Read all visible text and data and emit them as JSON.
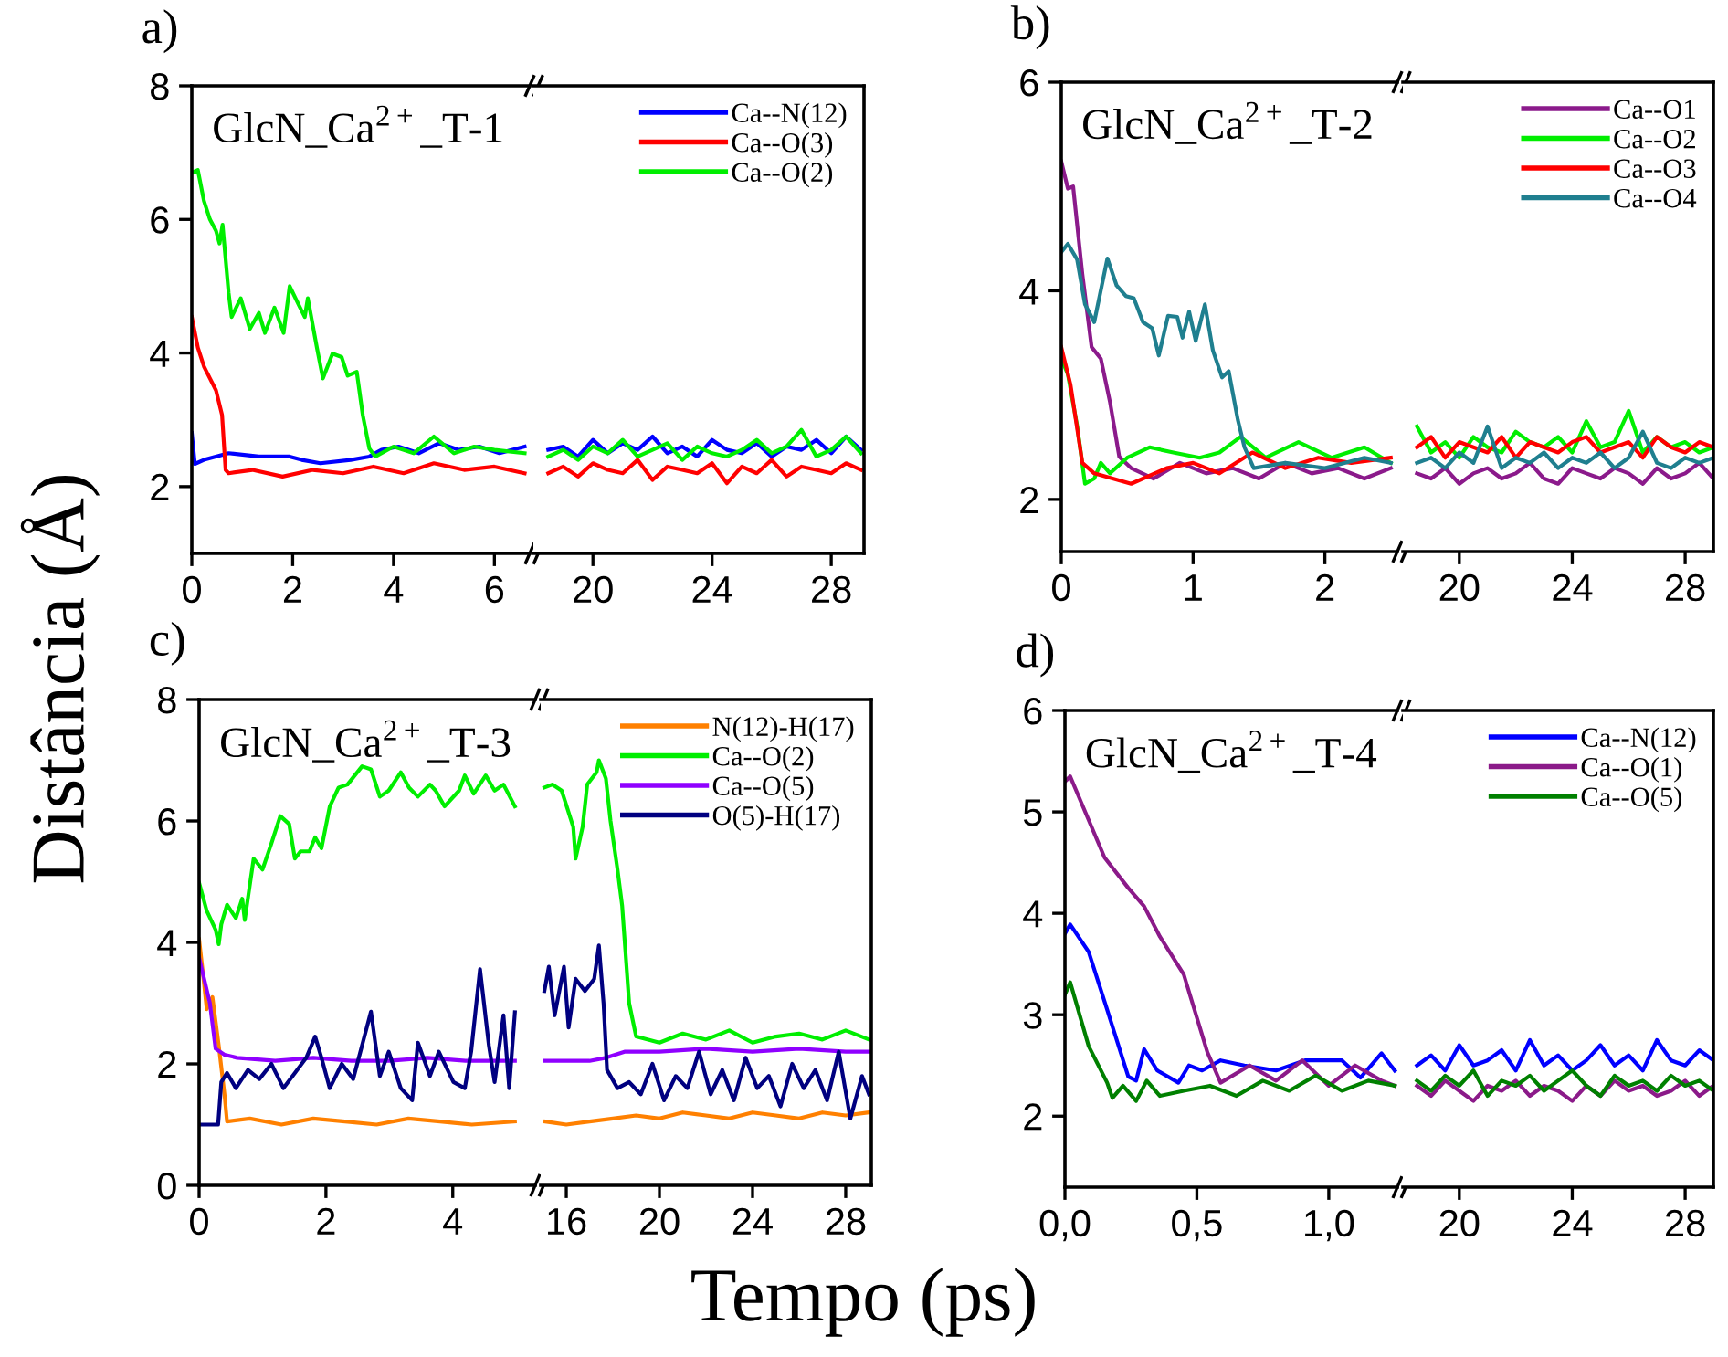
{
  "chart_data": [
    {
      "type": "line",
      "title": "a)",
      "xlabel": "Tempo (ps)",
      "ylabel": "Distância (Å)",
      "annotations": [
        "GlcN_Ca$^{2+}$_T-1"
      ],
      "xlim": [
        0,
        6.7
      ],
      "xticks": [
        0,
        2,
        4,
        6
      ],
      "ylim": [
        1,
        8
      ],
      "yticks": [
        2,
        4,
        6,
        8
      ],
      "grid": false,
      "legend": false,
      "series": [
        {
          "color": "#0000ff",
          "x": [
            0,
            0.06,
            0.24,
            0.73,
            1.33,
            1.94,
            2.18,
            2.55,
            3.15,
            3.52,
            3.76,
            4.1,
            4.5,
            4.9,
            5.3,
            5.7,
            6.1,
            6.6
          ],
          "values": [
            2.8,
            2.34,
            2.4,
            2.5,
            2.45,
            2.45,
            2.4,
            2.35,
            2.4,
            2.45,
            2.55,
            2.6,
            2.5,
            2.65,
            2.55,
            2.6,
            2.5,
            2.6
          ]
        },
        {
          "color": "#ff0000",
          "x": [
            0,
            0.12,
            0.24,
            0.36,
            0.48,
            0.6,
            0.67,
            0.73,
            1.2,
            1.8,
            2.4,
            3.0,
            3.6,
            4.2,
            4.8,
            5.4,
            6.0,
            6.6
          ],
          "values": [
            4.54,
            4.08,
            3.8,
            3.62,
            3.44,
            3.07,
            2.25,
            2.2,
            2.25,
            2.15,
            2.25,
            2.2,
            2.3,
            2.2,
            2.35,
            2.25,
            2.3,
            2.2
          ]
        },
        {
          "color": "#00ee00",
          "x": [
            0,
            0.12,
            0.24,
            0.36,
            0.48,
            0.55,
            0.61,
            0.73,
            0.79,
            0.97,
            1.15,
            1.33,
            1.45,
            1.64,
            1.82,
            1.94,
            2.12,
            2.24,
            2.3,
            2.48,
            2.6,
            2.79,
            2.97,
            3.09,
            3.27,
            3.39,
            3.52,
            3.64,
            4.0,
            4.4,
            4.8,
            5.2,
            5.6,
            6.0,
            6.6
          ],
          "values": [
            6.7,
            6.74,
            6.28,
            6.0,
            5.83,
            5.64,
            5.92,
            4.9,
            4.54,
            4.82,
            4.36,
            4.6,
            4.3,
            4.68,
            4.3,
            5.0,
            4.72,
            4.54,
            4.82,
            4.08,
            3.62,
            3.99,
            3.94,
            3.66,
            3.72,
            3.07,
            2.57,
            2.45,
            2.6,
            2.5,
            2.75,
            2.5,
            2.6,
            2.55,
            2.5
          ]
        }
      ]
    },
    {
      "type": "line",
      "xlim": [
        18,
        29.1
      ],
      "xticks": [
        20,
        24,
        28
      ],
      "ylim": [
        1,
        8
      ],
      "tick_labels": "x",
      "grid": false,
      "legend": "top right",
      "x": [
        18.5,
        19,
        19.5,
        20,
        20.5,
        21,
        21.5,
        22,
        22.5,
        23,
        23.5,
        24,
        24.5,
        25,
        25.5,
        26,
        26.5,
        27,
        27.5,
        28,
        28.5,
        29
      ],
      "series": [
        {
          "name": "Ca--N(12)",
          "color": "#0000ff",
          "values": [
            2.55,
            2.6,
            2.45,
            2.7,
            2.5,
            2.65,
            2.55,
            2.75,
            2.5,
            2.6,
            2.45,
            2.7,
            2.55,
            2.5,
            2.65,
            2.45,
            2.6,
            2.55,
            2.7,
            2.5,
            2.75,
            2.55
          ]
        },
        {
          "name": "Ca--O(3)",
          "color": "#ff0000",
          "values": [
            2.2,
            2.3,
            2.15,
            2.35,
            2.25,
            2.2,
            2.4,
            2.1,
            2.3,
            2.25,
            2.2,
            2.35,
            2.05,
            2.3,
            2.2,
            2.4,
            2.15,
            2.3,
            2.25,
            2.2,
            2.35,
            2.25
          ]
        },
        {
          "name": "Ca--O(2)",
          "color": "#00ee00",
          "values": [
            2.45,
            2.55,
            2.4,
            2.6,
            2.5,
            2.7,
            2.45,
            2.55,
            2.65,
            2.4,
            2.6,
            2.5,
            2.45,
            2.55,
            2.7,
            2.5,
            2.6,
            2.85,
            2.45,
            2.55,
            2.75,
            2.5
          ]
        }
      ]
    },
    {
      "type": "line",
      "title": "b)",
      "annotations": [
        "GlcN_Ca$^{2+}$_T-2"
      ],
      "xlim": [
        0,
        2.55
      ],
      "xticks": [
        0,
        1,
        2
      ],
      "ylim": [
        1.5,
        6
      ],
      "yticks": [
        2,
        4,
        6
      ],
      "grid": false,
      "legend": false,
      "series": [
        {
          "color": "#8b1a8b",
          "x": [
            0,
            0.05,
            0.09,
            0.16,
            0.23,
            0.3,
            0.37,
            0.44,
            0.53,
            0.7,
            0.9,
            1.1,
            1.3,
            1.5,
            1.7,
            1.9,
            2.1,
            2.3,
            2.5
          ],
          "values": [
            5.24,
            4.98,
            5.0,
            4.16,
            3.46,
            3.35,
            2.93,
            2.41,
            2.3,
            2.2,
            2.35,
            2.25,
            2.3,
            2.2,
            2.35,
            2.25,
            2.3,
            2.2,
            2.3
          ]
        },
        {
          "color": "#00ee00",
          "x": [
            0,
            0.05,
            0.12,
            0.18,
            0.25,
            0.3,
            0.37,
            0.5,
            0.67,
            0.85,
            1.05,
            1.2,
            1.36,
            1.55,
            1.8,
            2.05,
            2.3,
            2.5
          ],
          "values": [
            3.35,
            3.2,
            2.71,
            2.15,
            2.2,
            2.35,
            2.25,
            2.4,
            2.5,
            2.45,
            2.4,
            2.45,
            2.6,
            2.4,
            2.55,
            2.4,
            2.5,
            2.35
          ]
        },
        {
          "color": "#ff0000",
          "x": [
            0,
            0.07,
            0.16,
            0.25,
            0.53,
            0.8,
            1.0,
            1.2,
            1.45,
            1.7,
            1.95,
            2.2,
            2.5
          ],
          "values": [
            3.46,
            3.1,
            2.35,
            2.25,
            2.15,
            2.3,
            2.35,
            2.25,
            2.45,
            2.3,
            2.4,
            2.35,
            2.4
          ]
        },
        {
          "color": "#1f7f8f",
          "x": [
            0,
            0.05,
            0.12,
            0.18,
            0.25,
            0.35,
            0.42,
            0.49,
            0.55,
            0.62,
            0.69,
            0.74,
            0.81,
            0.88,
            0.92,
            0.97,
            1.02,
            1.09,
            1.15,
            1.22,
            1.27,
            1.34,
            1.39,
            1.46,
            1.7,
            2.0,
            2.3,
            2.5
          ],
          "values": [
            4.37,
            4.45,
            4.3,
            3.87,
            3.7,
            4.31,
            4.05,
            3.95,
            3.93,
            3.7,
            3.64,
            3.38,
            3.76,
            3.75,
            3.55,
            3.8,
            3.52,
            3.87,
            3.43,
            3.17,
            3.23,
            2.76,
            2.5,
            2.3,
            2.35,
            2.3,
            2.4,
            2.35
          ]
        }
      ]
    },
    {
      "type": "line",
      "xlim": [
        18,
        29
      ],
      "xticks": [
        20,
        24,
        28
      ],
      "ylim": [
        1.5,
        6
      ],
      "tick_labels": "x",
      "grid": false,
      "legend": "top right",
      "x": [
        18.5,
        19,
        19.5,
        20,
        20.5,
        21,
        21.5,
        22,
        22.5,
        23,
        23.5,
        24,
        24.5,
        25,
        25.5,
        26,
        26.5,
        27,
        27.5,
        28,
        28.5,
        29
      ],
      "series": [
        {
          "name": "Ca--O1",
          "color": "#8b1a8b",
          "values": [
            2.25,
            2.2,
            2.3,
            2.15,
            2.25,
            2.3,
            2.2,
            2.25,
            2.35,
            2.2,
            2.15,
            2.3,
            2.25,
            2.2,
            2.3,
            2.25,
            2.15,
            2.3,
            2.2,
            2.25,
            2.35,
            2.2
          ]
        },
        {
          "name": "Ca--O2",
          "color": "#00ee00",
          "values": [
            2.7,
            2.45,
            2.55,
            2.4,
            2.6,
            2.5,
            2.45,
            2.65,
            2.55,
            2.5,
            2.6,
            2.45,
            2.75,
            2.5,
            2.55,
            2.85,
            2.45,
            2.6,
            2.5,
            2.55,
            2.45,
            2.5
          ]
        },
        {
          "name": "Ca--O3",
          "color": "#ff0000",
          "values": [
            2.5,
            2.6,
            2.4,
            2.55,
            2.5,
            2.45,
            2.6,
            2.4,
            2.55,
            2.5,
            2.45,
            2.55,
            2.6,
            2.45,
            2.5,
            2.55,
            2.4,
            2.6,
            2.5,
            2.45,
            2.55,
            2.5
          ]
        },
        {
          "name": "Ca--O4",
          "color": "#1f7f8f",
          "values": [
            2.35,
            2.4,
            2.3,
            2.45,
            2.35,
            2.7,
            2.3,
            2.4,
            2.35,
            2.45,
            2.3,
            2.4,
            2.35,
            2.45,
            2.3,
            2.4,
            2.65,
            2.35,
            2.3,
            2.4,
            2.35,
            2.4
          ]
        }
      ]
    },
    {
      "type": "line",
      "title": "c)",
      "annotations": [
        "GlcN_Ca$^{2+}$_T-3"
      ],
      "xlim": [
        0,
        5.3
      ],
      "xticks": [
        0,
        2,
        4
      ],
      "ylim": [
        0,
        8
      ],
      "yticks": [
        0,
        2,
        4,
        6,
        8
      ],
      "grid": false,
      "legend": false,
      "series": [
        {
          "color": "#ff8000",
          "x": [
            0,
            0.07,
            0.12,
            0.21,
            0.31,
            0.4,
            0.44,
            0.8,
            1.3,
            1.8,
            2.3,
            2.8,
            3.3,
            3.8,
            4.3,
            4.98
          ],
          "values": [
            4.05,
            3.4,
            2.9,
            3.1,
            2.3,
            1.5,
            1.05,
            1.1,
            1.0,
            1.1,
            1.05,
            1.0,
            1.1,
            1.05,
            1.0,
            1.05
          ]
        },
        {
          "color": "#00ee00",
          "x": [
            0,
            0.12,
            0.26,
            0.31,
            0.35,
            0.44,
            0.58,
            0.68,
            0.72,
            0.86,
            1.0,
            1.14,
            1.28,
            1.42,
            1.51,
            1.6,
            1.74,
            1.83,
            1.93,
            2.06,
            2.2,
            2.34,
            2.57,
            2.71,
            2.85,
            2.99,
            3.18,
            3.31,
            3.45,
            3.64,
            3.73,
            3.87,
            4.1,
            4.19,
            4.33,
            4.52,
            4.66,
            4.8,
            4.98
          ],
          "values": [
            4.98,
            4.52,
            4.21,
            3.97,
            4.3,
            4.62,
            4.4,
            4.72,
            4.37,
            5.38,
            5.2,
            5.63,
            6.08,
            5.95,
            5.38,
            5.5,
            5.5,
            5.73,
            5.55,
            6.24,
            6.55,
            6.6,
            6.9,
            6.85,
            6.4,
            6.5,
            6.8,
            6.55,
            6.4,
            6.6,
            6.5,
            6.24,
            6.5,
            6.75,
            6.45,
            6.75,
            6.5,
            6.6,
            6.24
          ]
        },
        {
          "color": "#8f00ff",
          "x": [
            0,
            0.17,
            0.26,
            0.4,
            0.6,
            1.2,
            1.8,
            2.4,
            3.0,
            3.6,
            4.2,
            4.98
          ],
          "values": [
            3.75,
            3.0,
            2.25,
            2.15,
            2.1,
            2.05,
            2.1,
            2.05,
            2.05,
            2.1,
            2.05,
            2.05
          ]
        },
        {
          "color": "#000080",
          "x": [
            0,
            0.3,
            0.35,
            0.44,
            0.58,
            0.77,
            0.95,
            1.14,
            1.33,
            1.51,
            1.69,
            1.83,
            1.93,
            2.06,
            2.25,
            2.43,
            2.71,
            2.85,
            2.99,
            3.18,
            3.36,
            3.45,
            3.64,
            3.78,
            4.01,
            4.19,
            4.29,
            4.43,
            4.57,
            4.66,
            4.8,
            4.89,
            4.98
          ],
          "values": [
            1.0,
            1.0,
            1.7,
            1.85,
            1.6,
            1.9,
            1.75,
            2.0,
            1.6,
            1.85,
            2.1,
            2.45,
            2.1,
            1.6,
            2.0,
            1.75,
            2.86,
            1.8,
            2.2,
            1.6,
            1.4,
            2.35,
            1.8,
            2.2,
            1.7,
            1.6,
            2.2,
            3.56,
            2.3,
            1.7,
            2.8,
            1.6,
            2.85
          ]
        }
      ]
    },
    {
      "type": "line",
      "xlim": [
        14.9,
        29.1
      ],
      "xticks": [
        16,
        20,
        24,
        28
      ],
      "ylim": [
        0,
        8
      ],
      "tick_labels": "x",
      "grid": false,
      "legend": "top right",
      "series": [
        {
          "name": "N(12)-H(17)",
          "color": "#ff8000",
          "x": [
            15.1,
            16,
            17,
            18,
            19,
            20,
            21,
            22,
            23,
            24,
            25,
            26,
            27,
            28,
            29
          ],
          "values": [
            1.05,
            1.0,
            1.05,
            1.1,
            1.15,
            1.1,
            1.2,
            1.15,
            1.1,
            1.2,
            1.15,
            1.1,
            1.2,
            1.15,
            1.2
          ]
        },
        {
          "name": "Ca--O(2)",
          "color": "#00ee00",
          "x": [
            15.06,
            15.4,
            15.8,
            16.05,
            16.3,
            16.4,
            16.7,
            16.9,
            17.3,
            17.4,
            17.7,
            17.9,
            18.2,
            18.4,
            18.7,
            19.0,
            20,
            21,
            22,
            23,
            24,
            25,
            26,
            27,
            28,
            29
          ],
          "values": [
            6.55,
            6.6,
            6.5,
            6.2,
            5.9,
            5.38,
            5.9,
            6.6,
            6.8,
            7.0,
            6.7,
            6.0,
            5.2,
            4.6,
            3.0,
            2.45,
            2.35,
            2.5,
            2.4,
            2.55,
            2.35,
            2.45,
            2.5,
            2.4,
            2.55,
            2.4
          ]
        },
        {
          "name": "Ca--O(5)",
          "color": "#8f00ff",
          "x": [
            15.1,
            16,
            17,
            17.7,
            18.5,
            20,
            22,
            24,
            26,
            28,
            29
          ],
          "values": [
            2.05,
            2.05,
            2.05,
            2.1,
            2.2,
            2.2,
            2.25,
            2.2,
            2.25,
            2.2,
            2.2
          ]
        },
        {
          "name": "O(5)-H(17)",
          "color": "#000080",
          "x": [
            15.06,
            15.25,
            15.5,
            15.9,
            16.1,
            16.4,
            16.8,
            17.2,
            17.4,
            17.6,
            17.75,
            18.2,
            18.7,
            19.2,
            19.7,
            20.2,
            20.7,
            21.2,
            21.7,
            22.2,
            22.7,
            23.2,
            23.7,
            24.2,
            24.7,
            25.2,
            25.7,
            26.2,
            26.7,
            27.2,
            27.7,
            28.2,
            28.7,
            29
          ],
          "values": [
            3.2,
            3.6,
            2.8,
            3.6,
            2.6,
            3.4,
            3.2,
            3.4,
            3.95,
            3.0,
            1.9,
            1.6,
            1.7,
            1.5,
            2.0,
            1.4,
            1.8,
            1.6,
            2.2,
            1.5,
            1.9,
            1.4,
            2.1,
            1.6,
            1.8,
            1.3,
            2.0,
            1.6,
            1.9,
            1.4,
            2.2,
            1.1,
            1.8,
            1.5
          ]
        }
      ]
    },
    {
      "type": "line",
      "title": "d)",
      "annotations": [
        "GlcN_Ca$^{2+}$_T-4"
      ],
      "xlim": [
        0,
        1.26
      ],
      "xticks": [
        {
          "value": 0,
          "label": "0,0"
        },
        {
          "value": 0.5,
          "label": "0,5"
        },
        {
          "value": 1,
          "label": "1,0"
        }
      ],
      "ylim": [
        1.3,
        6
      ],
      "yticks": [
        2,
        3,
        4,
        5,
        6
      ],
      "grid": false,
      "legend": false,
      "series": [
        {
          "color": "#0000ff",
          "x": [
            0,
            0.02,
            0.09,
            0.16,
            0.24,
            0.27,
            0.3,
            0.35,
            0.43,
            0.47,
            0.52,
            0.59,
            0.68,
            0.8,
            0.91,
            1.05,
            1.12,
            1.2,
            1.25
          ],
          "values": [
            3.8,
            3.89,
            3.62,
            3.05,
            2.39,
            2.35,
            2.66,
            2.45,
            2.33,
            2.5,
            2.45,
            2.55,
            2.5,
            2.45,
            2.55,
            2.55,
            2.38,
            2.62,
            2.45
          ]
        },
        {
          "color": "#8b1a89",
          "x": [
            0,
            0.02,
            0.15,
            0.24,
            0.3,
            0.36,
            0.45,
            0.54,
            0.59,
            0.7,
            0.8,
            0.9,
            1.0,
            1.1,
            1.2,
            1.25
          ],
          "values": [
            5.3,
            5.35,
            4.55,
            4.25,
            4.07,
            3.77,
            3.4,
            2.63,
            2.33,
            2.5,
            2.35,
            2.55,
            2.3,
            2.5,
            2.35,
            2.3
          ]
        },
        {
          "color": "#008000",
          "x": [
            0,
            0.02,
            0.09,
            0.16,
            0.18,
            0.22,
            0.27,
            0.31,
            0.36,
            0.45,
            0.55,
            0.65,
            0.75,
            0.85,
            0.95,
            1.05,
            1.15,
            1.25
          ],
          "values": [
            3.2,
            3.32,
            2.69,
            2.33,
            2.18,
            2.3,
            2.15,
            2.35,
            2.2,
            2.25,
            2.3,
            2.2,
            2.35,
            2.25,
            2.4,
            2.25,
            2.35,
            2.3
          ]
        }
      ]
    },
    {
      "type": "line",
      "xlim": [
        18,
        29
      ],
      "xticks": [
        20,
        24,
        28
      ],
      "ylim": [
        1.3,
        6
      ],
      "tick_labels": "x",
      "grid": false,
      "legend": "top right",
      "x": [
        18.5,
        19,
        19.5,
        20,
        20.5,
        21,
        21.5,
        22,
        22.5,
        23,
        23.5,
        24,
        24.5,
        25,
        25.5,
        26,
        26.5,
        27,
        27.5,
        28,
        28.5,
        29
      ],
      "series": [
        {
          "name": "Ca--N(12)",
          "color": "#0000ff",
          "values": [
            2.5,
            2.6,
            2.45,
            2.7,
            2.5,
            2.55,
            2.65,
            2.45,
            2.75,
            2.5,
            2.6,
            2.45,
            2.55,
            2.7,
            2.5,
            2.6,
            2.45,
            2.75,
            2.55,
            2.5,
            2.65,
            2.55
          ]
        },
        {
          "name": "Ca--O(1)",
          "color": "#8b1a89",
          "values": [
            2.3,
            2.2,
            2.35,
            2.25,
            2.15,
            2.3,
            2.25,
            2.35,
            2.2,
            2.3,
            2.25,
            2.15,
            2.3,
            2.2,
            2.35,
            2.25,
            2.3,
            2.2,
            2.25,
            2.35,
            2.2,
            2.3
          ]
        },
        {
          "name": "Ca--O(5)",
          "color": "#008000",
          "values": [
            2.35,
            2.25,
            2.4,
            2.3,
            2.45,
            2.2,
            2.35,
            2.3,
            2.4,
            2.25,
            2.35,
            2.45,
            2.3,
            2.2,
            2.4,
            2.3,
            2.35,
            2.25,
            2.4,
            2.3,
            2.35,
            2.25
          ]
        }
      ]
    }
  ]
}
